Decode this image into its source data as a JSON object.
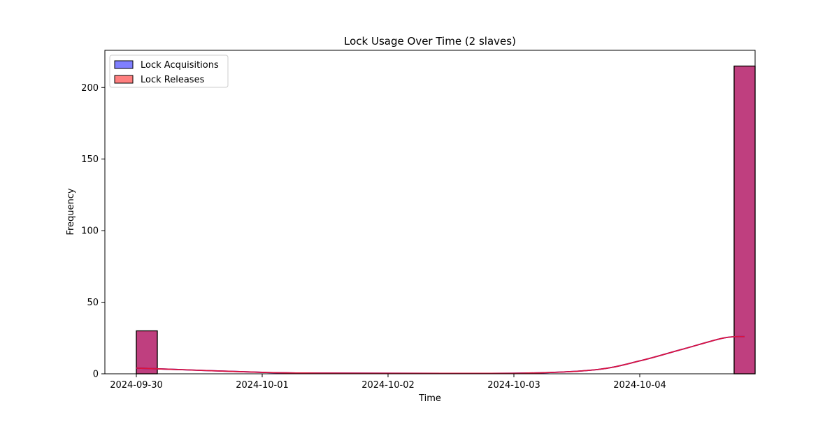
{
  "chart_data": {
    "type": "bar",
    "title": "Lock Usage Over Time (2 slaves)",
    "xlabel": "Time",
    "ylabel": "Frequency",
    "x_ticks": [
      "2024-09-30",
      "2024-10-01",
      "2024-10-02",
      "2024-10-03",
      "2024-10-04"
    ],
    "y_ticks": [
      0,
      50,
      100,
      150,
      200
    ],
    "ylim": [
      0,
      226
    ],
    "xlim": [
      "2024-09-29 18:00",
      "2024-10-04 22:00"
    ],
    "grid": false,
    "legend_position": "top-left",
    "series": [
      {
        "name": "Lock Acquisitions",
        "color": "#0000ff",
        "bars": [
          {
            "start": "2024-09-30 00:00",
            "end": "2024-09-30 04:00",
            "value": 30
          },
          {
            "start": "2024-10-04 18:00",
            "end": "2024-10-04 22:00",
            "value": 215
          }
        ],
        "kde": [
          {
            "x": "2024-09-30 00:00",
            "y": 4
          },
          {
            "x": "2024-10-01 00:00",
            "y": 1
          },
          {
            "x": "2024-10-01 12:00",
            "y": 0.5
          },
          {
            "x": "2024-10-02 12:00",
            "y": 0.3
          },
          {
            "x": "2024-10-03 04:00",
            "y": 0.6
          },
          {
            "x": "2024-10-03 16:00",
            "y": 3
          },
          {
            "x": "2024-10-04 00:00",
            "y": 9
          },
          {
            "x": "2024-10-04 08:00",
            "y": 17
          },
          {
            "x": "2024-10-04 16:00",
            "y": 25
          },
          {
            "x": "2024-10-04 20:00",
            "y": 26
          }
        ]
      },
      {
        "name": "Lock Releases",
        "color": "#ff0000",
        "bars": [
          {
            "start": "2024-09-30 00:00",
            "end": "2024-09-30 04:00",
            "value": 30
          },
          {
            "start": "2024-10-04 18:00",
            "end": "2024-10-04 22:00",
            "value": 215
          }
        ],
        "kde": [
          {
            "x": "2024-09-30 00:00",
            "y": 4
          },
          {
            "x": "2024-10-01 00:00",
            "y": 1
          },
          {
            "x": "2024-10-01 12:00",
            "y": 0.5
          },
          {
            "x": "2024-10-02 12:00",
            "y": 0.3
          },
          {
            "x": "2024-10-03 04:00",
            "y": 0.6
          },
          {
            "x": "2024-10-03 16:00",
            "y": 3
          },
          {
            "x": "2024-10-04 00:00",
            "y": 9
          },
          {
            "x": "2024-10-04 08:00",
            "y": 17
          },
          {
            "x": "2024-10-04 16:00",
            "y": 25
          },
          {
            "x": "2024-10-04 20:00",
            "y": 26
          }
        ]
      }
    ]
  }
}
